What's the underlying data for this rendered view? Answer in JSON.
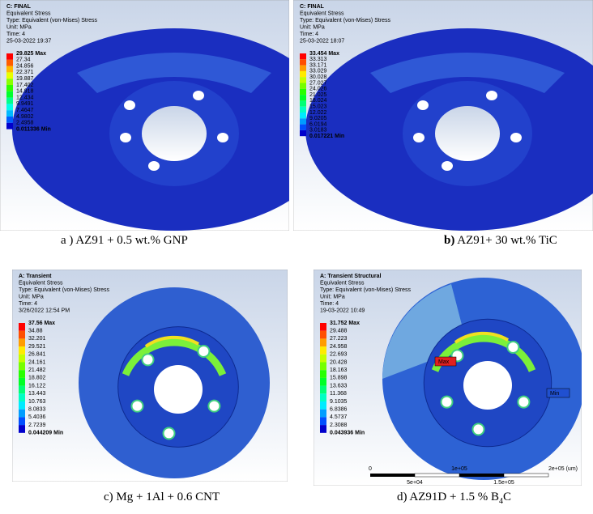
{
  "panels": [
    {
      "header": [
        "C: FINAL",
        "Equivalent Stress",
        "Type: Equivalent (von-Mises) Stress",
        "Unit: MPa",
        "Time: 4",
        "25-03-2022 19:37"
      ],
      "legend": [
        "29.825 Max",
        "27.34",
        "24.856",
        "22.371",
        "19.887",
        "17.402",
        "14.918",
        "12.434",
        "9.9491",
        "7.4647",
        "4.9802",
        "2.4958",
        "0.011336 Min"
      ],
      "caption": {
        "label": "a )",
        "text": " AZ91 + 0.5 wt.% GNP"
      }
    },
    {
      "header": [
        "C: FINAL",
        "Equivalent Stress",
        "Type: Equivalent (von-Mises) Stress",
        "Unit: MPa",
        "Time: 4",
        "25-03-2022 18:07"
      ],
      "legend": [
        "33.454 Max",
        "33.313",
        "33.171",
        "33.029",
        "30.028",
        "27.027",
        "24.026",
        "21.025",
        "18.024",
        "15.023",
        "12.022",
        "9.0205",
        "6.0194",
        "3.0183",
        "0.017221 Min"
      ],
      "caption": {
        "label": "b)",
        "text": " AZ91+ 30 wt.% TiC"
      }
    },
    {
      "header": [
        "A: Transient",
        "Equivalent Stress",
        "Type: Equivalent (von-Mises) Stress",
        "Unit: MPa",
        "Time: 4",
        "3/26/2022 12:54 PM"
      ],
      "legend": [
        "37.56 Max",
        "34.88",
        "32.201",
        "29.521",
        "26.841",
        "24.161",
        "21.482",
        "18.802",
        "16.122",
        "13.443",
        "10.763",
        "8.0833",
        "5.4036",
        "2.7239",
        "0.044209 Min"
      ],
      "caption": {
        "label": "c)",
        "text": " Mg + 1Al + 0.6 CNT"
      }
    },
    {
      "header": [
        "A: Transient Structural",
        "Equivalent Stress",
        "Type: Equivalent (von-Mises) Stress",
        "Unit: MPa",
        "Time: 4",
        "19-03-2022 10:49"
      ],
      "legend": [
        "31.752 Max",
        "29.488",
        "27.223",
        "24.958",
        "22.693",
        "20.428",
        "18.163",
        "15.898",
        "13.633",
        "11.368",
        "9.1035",
        "6.8386",
        "4.5737",
        "2.3088",
        "0.043936 Min"
      ],
      "markers": [
        "Max",
        "Min"
      ],
      "scale": [
        "0",
        "1e+05",
        "2e+05 (um)",
        "5e+04",
        "1.5e+05"
      ],
      "caption": {
        "label": "d)",
        "text": " AZ91D + 1.5 % B",
        "sub": "4",
        "tail": "C"
      }
    }
  ]
}
